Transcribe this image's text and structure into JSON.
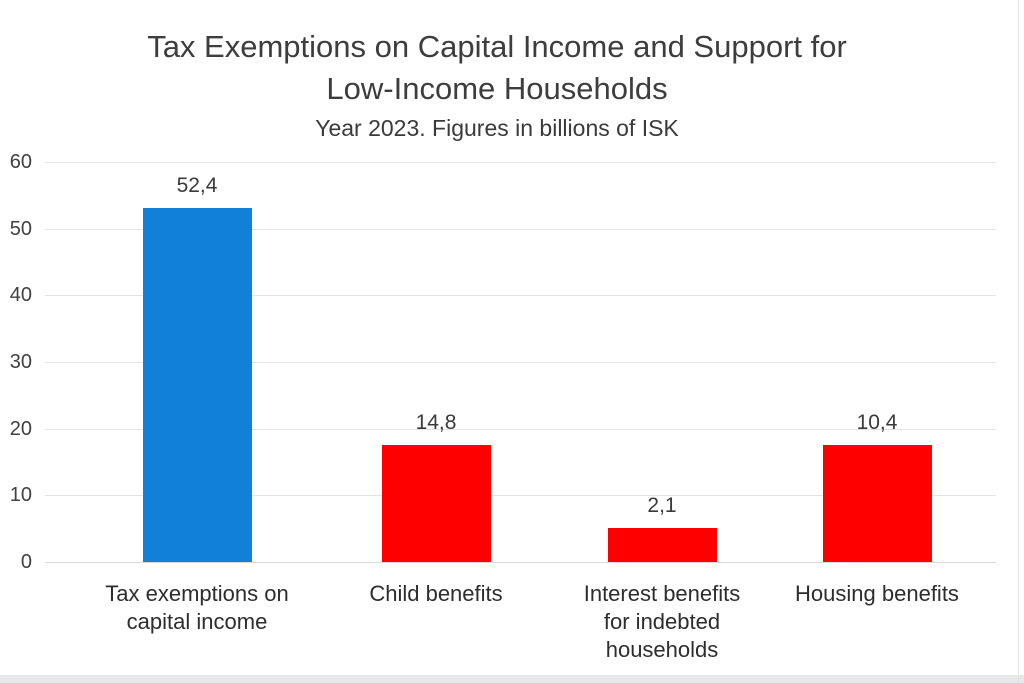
{
  "header": {
    "title_line1": "Tax Exemptions on Capital Income and Support for",
    "title_line2": "Low-Income Households",
    "subtitle": "Year 2023. Figures in billions of ISK"
  },
  "chart_data": {
    "type": "bar",
    "title": "Tax Exemptions on Capital Income and Support for Low-Income Households",
    "subtitle": "Year 2023. Figures in billions of ISK",
    "categories": [
      "Tax exemptions on capital income",
      "Child benefits",
      "Interest benefits for indebted households",
      "Housing benefits"
    ],
    "category_lines": [
      [
        "Tax exemptions on",
        "capital income"
      ],
      [
        "Child benefits"
      ],
      [
        "Interest benefits",
        "for indebted",
        "households"
      ],
      [
        "Housing benefits"
      ]
    ],
    "values": [
      52.4,
      14.8,
      2.1,
      10.4
    ],
    "value_labels": [
      "52,4",
      "14,8",
      "2,1",
      "10,4"
    ],
    "drawn_heights_units": [
      53.1,
      17.6,
      5.1,
      17.6
    ],
    "bar_colors": [
      "#1080d8",
      "#ff0000",
      "#ff0000",
      "#ff0000"
    ],
    "xlabel": "",
    "ylabel": "",
    "ylim": [
      0,
      60
    ],
    "yticks": [
      0,
      10,
      20,
      30,
      40,
      50,
      60
    ],
    "grid": true,
    "legend": false,
    "note": "Bars as drawn in source are not proportional to labeled values"
  },
  "colors": {
    "bar_blue": "#1080d8",
    "bar_red": "#ff0000",
    "gridline": "#e3e3e3",
    "baseline": "#d9d9d9",
    "title_text": "#3d3d3d",
    "axis_text": "#404040",
    "bottom_strip": "#e8e8ea"
  }
}
